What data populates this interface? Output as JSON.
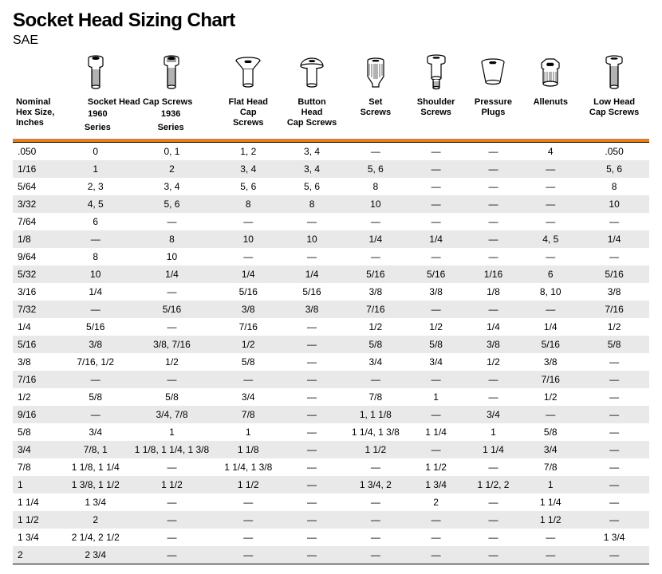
{
  "title": "Socket Head Sizing Chart",
  "subtitle": "SAE",
  "orange_color": "#f57c00",
  "shade_color": "#e9e9e9",
  "row_color": "#ffffff",
  "font_family": "Arial, Helvetica, sans-serif",
  "title_fontsize": 24,
  "header_fontsize": 11,
  "cell_fontsize": 12,
  "columns": [
    {
      "key": "hex",
      "label": "Nominal\nHex Size,\nInches",
      "icon": null,
      "align": "left"
    },
    {
      "key": "shcs1960",
      "label": "Socket Head Cap Screws\n1960\nSeries",
      "icon": "socket-head-1960",
      "span_with_next_label": true
    },
    {
      "key": "shcs1936",
      "label": "1936\nSeries",
      "icon": "socket-head-1936"
    },
    {
      "key": "flat",
      "label": "Flat Head\nCap\nScrews",
      "icon": "flat-head"
    },
    {
      "key": "button",
      "label": "Button\nHead\nCap Screws",
      "icon": "button-head"
    },
    {
      "key": "set",
      "label": "Set\nScrews",
      "icon": "set-screw"
    },
    {
      "key": "shoulder",
      "label": "Shoulder\nScrews",
      "icon": "shoulder-screw"
    },
    {
      "key": "pressure",
      "label": "Pressure\nPlugs",
      "icon": "pressure-plug"
    },
    {
      "key": "allenuts",
      "label": "Allenuts",
      "icon": "allenut"
    },
    {
      "key": "lowhead",
      "label": "Low Head\nCap Screws",
      "icon": "low-head"
    }
  ],
  "rows": [
    {
      "hex": ".050",
      "shcs1960": "0",
      "shcs1936": "0, 1",
      "flat": "1, 2",
      "button": "3, 4",
      "set": "—",
      "shoulder": "—",
      "pressure": "—",
      "allenuts": "4",
      "lowhead": ".050"
    },
    {
      "hex": "1/16",
      "shcs1960": "1",
      "shcs1936": "2",
      "flat": "3, 4",
      "button": "3, 4",
      "set": "5, 6",
      "shoulder": "—",
      "pressure": "—",
      "allenuts": "—",
      "lowhead": "5, 6"
    },
    {
      "hex": "5/64",
      "shcs1960": "2, 3",
      "shcs1936": "3, 4",
      "flat": "5, 6",
      "button": "5, 6",
      "set": "8",
      "shoulder": "—",
      "pressure": "—",
      "allenuts": "—",
      "lowhead": "8"
    },
    {
      "hex": "3/32",
      "shcs1960": "4, 5",
      "shcs1936": "5, 6",
      "flat": "8",
      "button": "8",
      "set": "10",
      "shoulder": "—",
      "pressure": "—",
      "allenuts": "—",
      "lowhead": "10"
    },
    {
      "hex": "7/64",
      "shcs1960": "6",
      "shcs1936": "—",
      "flat": "—",
      "button": "—",
      "set": "—",
      "shoulder": "—",
      "pressure": "—",
      "allenuts": "—",
      "lowhead": "—"
    },
    {
      "hex": "1/8",
      "shcs1960": "—",
      "shcs1936": "8",
      "flat": "10",
      "button": "10",
      "set": "1/4",
      "shoulder": "1/4",
      "pressure": "—",
      "allenuts": "4, 5",
      "lowhead": "1/4"
    },
    {
      "hex": "9/64",
      "shcs1960": "8",
      "shcs1936": "10",
      "flat": "—",
      "button": "—",
      "set": "—",
      "shoulder": "—",
      "pressure": "—",
      "allenuts": "—",
      "lowhead": "—"
    },
    {
      "hex": "5/32",
      "shcs1960": "10",
      "shcs1936": "1/4",
      "flat": "1/4",
      "button": "1/4",
      "set": "5/16",
      "shoulder": "5/16",
      "pressure": "1/16",
      "allenuts": "6",
      "lowhead": "5/16"
    },
    {
      "hex": "3/16",
      "shcs1960": "1/4",
      "shcs1936": "—",
      "flat": "5/16",
      "button": "5/16",
      "set": "3/8",
      "shoulder": "3/8",
      "pressure": "1/8",
      "allenuts": "8, 10",
      "lowhead": "3/8"
    },
    {
      "hex": "7/32",
      "shcs1960": "—",
      "shcs1936": "5/16",
      "flat": "3/8",
      "button": "3/8",
      "set": "7/16",
      "shoulder": "—",
      "pressure": "—",
      "allenuts": "—",
      "lowhead": "7/16"
    },
    {
      "hex": "1/4",
      "shcs1960": "5/16",
      "shcs1936": "—",
      "flat": "7/16",
      "button": "—",
      "set": "1/2",
      "shoulder": "1/2",
      "pressure": "1/4",
      "allenuts": "1/4",
      "lowhead": "1/2"
    },
    {
      "hex": "5/16",
      "shcs1960": "3/8",
      "shcs1936": "3/8, 7/16",
      "flat": "1/2",
      "button": "—",
      "set": "5/8",
      "shoulder": "5/8",
      "pressure": "3/8",
      "allenuts": "5/16",
      "lowhead": "5/8"
    },
    {
      "hex": "3/8",
      "shcs1960": "7/16, 1/2",
      "shcs1936": "1/2",
      "flat": "5/8",
      "button": "—",
      "set": "3/4",
      "shoulder": "3/4",
      "pressure": "1/2",
      "allenuts": "3/8",
      "lowhead": "—"
    },
    {
      "hex": "7/16",
      "shcs1960": "—",
      "shcs1936": "—",
      "flat": "—",
      "button": "—",
      "set": "—",
      "shoulder": "—",
      "pressure": "—",
      "allenuts": "7/16",
      "lowhead": "—"
    },
    {
      "hex": "1/2",
      "shcs1960": "5/8",
      "shcs1936": "5/8",
      "flat": "3/4",
      "button": "—",
      "set": "7/8",
      "shoulder": "1",
      "pressure": "—",
      "allenuts": "1/2",
      "lowhead": "—"
    },
    {
      "hex": "9/16",
      "shcs1960": "—",
      "shcs1936": "3/4, 7/8",
      "flat": "7/8",
      "button": "—",
      "set": "1, 1 1/8",
      "shoulder": "—",
      "pressure": "3/4",
      "allenuts": "—",
      "lowhead": "—"
    },
    {
      "hex": "5/8",
      "shcs1960": "3/4",
      "shcs1936": "1",
      "flat": "1",
      "button": "—",
      "set": "1 1/4, 1 3/8",
      "shoulder": "1 1/4",
      "pressure": "1",
      "allenuts": "5/8",
      "lowhead": "—"
    },
    {
      "hex": "3/4",
      "shcs1960": "7/8, 1",
      "shcs1936": "1 1/8, 1 1/4, 1 3/8",
      "flat": "1 1/8",
      "button": "—",
      "set": "1 1/2",
      "shoulder": "—",
      "pressure": "1 1/4",
      "allenuts": "3/4",
      "lowhead": "—"
    },
    {
      "hex": "7/8",
      "shcs1960": "1 1/8, 1 1/4",
      "shcs1936": "—",
      "flat": "1 1/4, 1 3/8",
      "button": "—",
      "set": "—",
      "shoulder": "1 1/2",
      "pressure": "—",
      "allenuts": "7/8",
      "lowhead": "—"
    },
    {
      "hex": "1",
      "shcs1960": "1 3/8, 1 1/2",
      "shcs1936": "1 1/2",
      "flat": "1 1/2",
      "button": "—",
      "set": "1 3/4, 2",
      "shoulder": "1 3/4",
      "pressure": "1 1/2, 2",
      "allenuts": "1",
      "lowhead": "—"
    },
    {
      "hex": "1 1/4",
      "shcs1960": "1 3/4",
      "shcs1936": "—",
      "flat": "—",
      "button": "—",
      "set": "—",
      "shoulder": "2",
      "pressure": "—",
      "allenuts": "1 1/4",
      "lowhead": "—"
    },
    {
      "hex": "1 1/2",
      "shcs1960": "2",
      "shcs1936": "—",
      "flat": "—",
      "button": "—",
      "set": "—",
      "shoulder": "—",
      "pressure": "—",
      "allenuts": "1 1/2",
      "lowhead": "—"
    },
    {
      "hex": "1 3/4",
      "shcs1960": "2 1/4, 2 1/2",
      "shcs1936": "—",
      "flat": "—",
      "button": "—",
      "set": "—",
      "shoulder": "—",
      "pressure": "—",
      "allenuts": "—",
      "lowhead": "1 3/4"
    },
    {
      "hex": "2",
      "shcs1960": "2 3/4",
      "shcs1936": "—",
      "flat": "—",
      "button": "—",
      "set": "—",
      "shoulder": "—",
      "pressure": "—",
      "allenuts": "—",
      "lowhead": "—"
    }
  ]
}
